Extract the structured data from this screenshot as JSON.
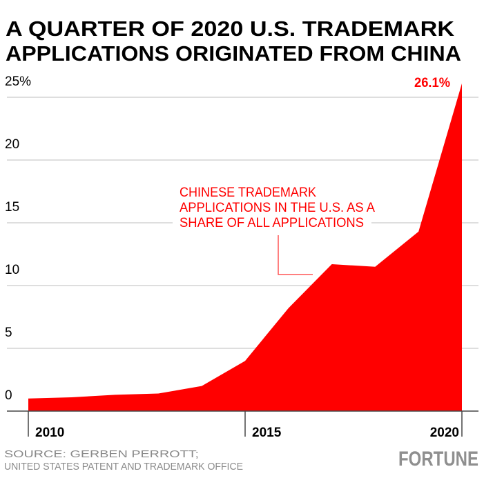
{
  "title_lines": [
    "A QUARTER OF 2020 U.S. TRADEMARK",
    "APPLICATIONS ORIGINATED FROM CHINA"
  ],
  "chart_data": {
    "type": "area",
    "title": "A QUARTER OF 2020 U.S. TRADEMARK APPLICATIONS ORIGINATED FROM CHINA",
    "x": [
      2010,
      2011,
      2012,
      2013,
      2014,
      2015,
      2016,
      2017,
      2018,
      2019,
      2020
    ],
    "values": [
      1.0,
      1.1,
      1.3,
      1.4,
      2.0,
      4.0,
      8.2,
      11.7,
      11.5,
      14.3,
      26.1
    ],
    "series_name": "Chinese trademark applications in the U.S. as a share of all applications",
    "ylim": [
      0,
      25
    ],
    "xlim": [
      2010,
      2020
    ],
    "y_ticks": [
      0,
      5,
      10,
      15,
      20,
      25
    ],
    "y_tick_labels": [
      "0",
      "5",
      "10",
      "15",
      "20",
      "25%"
    ],
    "x_ticks": [
      2010,
      2015,
      2020
    ],
    "x_tick_labels": [
      "2010",
      "2015",
      "2020"
    ],
    "end_label": "26.1%",
    "annotation_lines": [
      "CHINESE TRADEMARK",
      "APPLICATIONS IN THE U.S. AS A",
      "SHARE OF ALL APPLICATIONS"
    ],
    "grid": true,
    "fill_color": "#ff0000"
  },
  "source_lines": [
    "SOURCE: GERBEN PERROTT;",
    "UNITED STATES PATENT AND TRADEMARK OFFICE"
  ],
  "logo": "FORTUNE"
}
